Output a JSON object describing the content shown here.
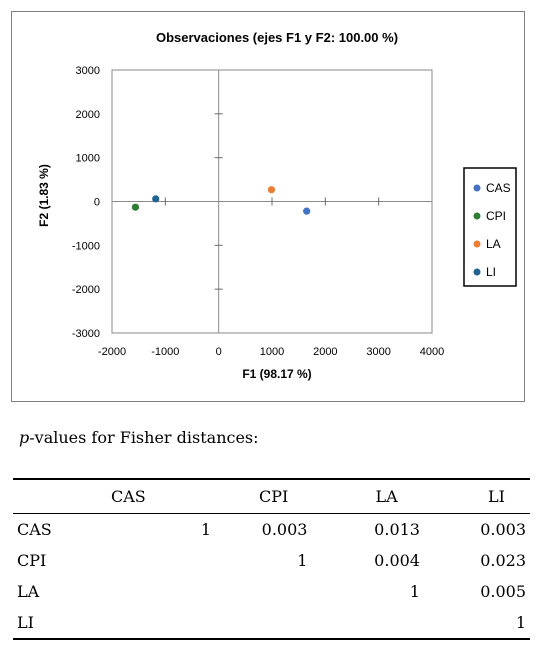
{
  "chart_data": {
    "type": "scatter",
    "title": "Observaciones (ejes F1 y F2: 100.00 %)",
    "xlabel": "F1 (98.17 %)",
    "ylabel": "F2 (1.83 %)",
    "xlim": [
      -2000,
      4000
    ],
    "ylim": [
      -3000,
      3000
    ],
    "x_ticks": [
      -2000,
      -1000,
      0,
      1000,
      2000,
      3000,
      4000
    ],
    "y_ticks": [
      -3000,
      -2000,
      -1000,
      0,
      1000,
      2000,
      3000
    ],
    "grid": false,
    "legend_position": "right",
    "series": [
      {
        "name": "CAS",
        "color": "#4472C4",
        "x": 1650,
        "y": -220
      },
      {
        "name": "CPI",
        "color": "#2E7D32",
        "x": -1560,
        "y": -130
      },
      {
        "name": "LA",
        "color": "#ED7D31",
        "x": 990,
        "y": 270
      },
      {
        "name": "LI",
        "color": "#1F6391",
        "x": -1180,
        "y": 60
      }
    ]
  },
  "caption": {
    "p": "p",
    "rest": "-values for Fisher distances:"
  },
  "table": {
    "columns": [
      "CAS",
      "CPI",
      "LA",
      "LI"
    ],
    "rows": [
      {
        "label": "CAS",
        "cells": [
          "1",
          "0.003",
          "0.013",
          "0.003"
        ]
      },
      {
        "label": "CPI",
        "cells": [
          "",
          "1",
          "0.004",
          "0.023"
        ]
      },
      {
        "label": "LA",
        "cells": [
          "",
          "",
          "1",
          "0.005"
        ]
      },
      {
        "label": "LI",
        "cells": [
          "",
          "",
          "",
          "1"
        ]
      }
    ]
  }
}
